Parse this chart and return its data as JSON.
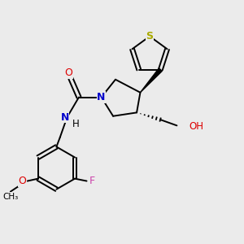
{
  "bg_color": "#ebebeb",
  "atom_colors": {
    "C": "#000000",
    "N": "#0000cc",
    "O": "#dd0000",
    "S": "#aaaa00",
    "F": "#cc44aa",
    "H": "#000000"
  }
}
